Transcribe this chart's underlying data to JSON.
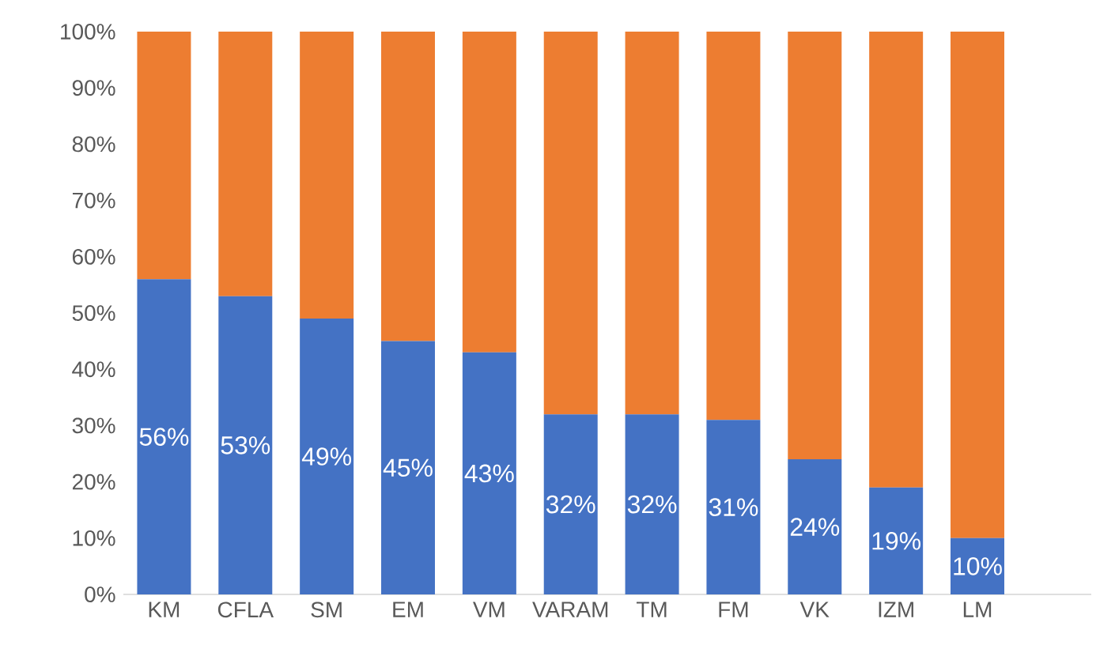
{
  "chart_data": {
    "type": "bar",
    "stacked": true,
    "categories": [
      "KM",
      "CFLA",
      "SM",
      "EM",
      "VM",
      "VARAM",
      "TM",
      "FM",
      "VK",
      "IZM",
      "LM"
    ],
    "series": [
      {
        "color": "#4472c4",
        "values": [
          56,
          53,
          49,
          45,
          43,
          32,
          32,
          31,
          24,
          19,
          10
        ],
        "value_labels": [
          "56%",
          "53%",
          "49%",
          "45%",
          "43%",
          "32%",
          "32%",
          "31%",
          "24%",
          "19%",
          "10%"
        ]
      },
      {
        "color": "#ed7d31",
        "values": [
          44,
          47,
          51,
          55,
          57,
          68,
          68,
          69,
          76,
          81,
          90
        ]
      }
    ],
    "ylim": [
      0,
      100
    ],
    "yticks": [
      {
        "value": 0,
        "label": "0%"
      },
      {
        "value": 10,
        "label": "10%"
      },
      {
        "value": 20,
        "label": "20%"
      },
      {
        "value": 30,
        "label": "30%"
      },
      {
        "value": 40,
        "label": "40%"
      },
      {
        "value": 50,
        "label": "50%"
      },
      {
        "value": 60,
        "label": "60%"
      },
      {
        "value": 70,
        "label": "70%"
      },
      {
        "value": 80,
        "label": "80%"
      },
      {
        "value": 90,
        "label": "90%"
      },
      {
        "value": 100,
        "label": "100%"
      }
    ]
  }
}
